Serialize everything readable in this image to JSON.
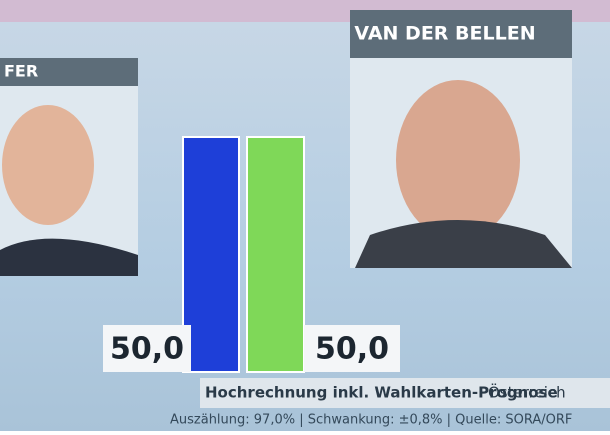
{
  "chart_data": {
    "type": "bar",
    "categories": [
      "FER",
      "VAN DER BELLEN"
    ],
    "values": [
      50,
      50
    ],
    "value_labels": [
      "50,0",
      "50,0"
    ],
    "colors": [
      "#1e3fd8",
      "#7fd858"
    ],
    "caption": "Hochrechnung inkl. Wahlkarten-Prognose",
    "region": "Österreich",
    "footnote": "Auszählung: 97,0% | Schwankung: ±0,8% | Quelle: SORA/ORF"
  }
}
